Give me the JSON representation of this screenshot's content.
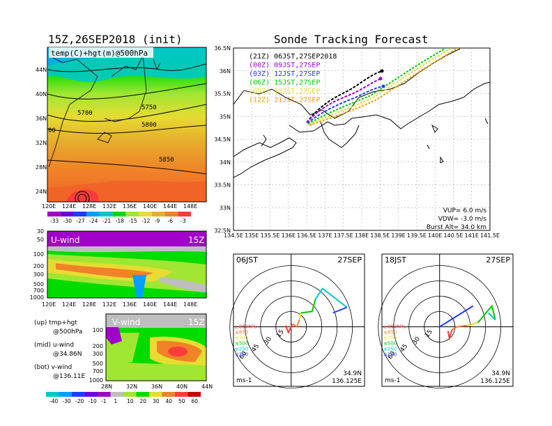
{
  "left": {
    "title": "15Z,26SEP2018 (init)",
    "map_label": "temp(C)+hgt(m)@500hPa",
    "lat_ticks": [
      "44N",
      "40N",
      "36N",
      "32N",
      "28N",
      "24N"
    ],
    "lon_ticks": [
      "120E",
      "124E",
      "128E",
      "132E",
      "136E",
      "140E",
      "144E",
      "148E"
    ],
    "contour_labels": [
      "5700",
      "5750",
      "5800",
      "5850",
      "00"
    ],
    "temp_colorbar": [
      "-33",
      "-30",
      "-27",
      "-24",
      "-21",
      "-18",
      "-15",
      "-12",
      "-9",
      "-6",
      "-3"
    ],
    "uwind": {
      "label": "U-wind",
      "time": "15Z",
      "p_ticks": [
        "30",
        "50",
        "100",
        "200",
        "300",
        "500",
        "700",
        "1000"
      ],
      "lon_ticks": [
        "120E",
        "124E",
        "128E",
        "132E",
        "136E",
        "140E",
        "144E",
        "148E"
      ]
    },
    "vwind": {
      "label": "V-wind",
      "time": "15Z",
      "p_ticks": [
        "100",
        "200",
        "300",
        "500",
        "700",
        "1000"
      ],
      "lat_ticks": [
        "28N",
        "32N",
        "36N",
        "40N",
        "44N"
      ]
    },
    "legend": [
      "(up) tmp+hgt",
      "@500hPa",
      "(mid) u-wind",
      "@34.86N",
      "(bot) v-wind",
      "@136.11E"
    ],
    "wind_colorbar": [
      "-40",
      "-30",
      "-20",
      "-10",
      "-1",
      "1",
      "10",
      "20",
      "30",
      "40",
      "50",
      "60"
    ]
  },
  "right": {
    "title": "Sonde Tracking Forecast",
    "runs": [
      {
        "label": "(21Z)  06JST,27SEP2018",
        "color": "#000000"
      },
      {
        "label": "(00Z)  09JST,27SEP",
        "color": "#a000c8"
      },
      {
        "label": "(03Z)  12JST,27SEP",
        "color": "#1e3cff"
      },
      {
        "label": "(06Z)  15JST,27SEP",
        "color": "#00c800"
      },
      {
        "label": "(09Z)  18JST,27SEP",
        "color": "#e6dc32"
      },
      {
        "label": "(12Z)  21JST,27SEP",
        "color": "#f0a000"
      }
    ],
    "lat_ticks": [
      "36.5N",
      "36N",
      "35.5N",
      "35N",
      "34.5N",
      "34N",
      "33.5N",
      "33N",
      "32.5N"
    ],
    "lon_ticks": [
      "134.5E",
      "135E",
      "135.5E",
      "136E",
      "136.5E",
      "137E",
      "137.5E",
      "138E",
      "138.5E",
      "139E",
      "139.5E",
      "140E",
      "140.5E",
      "141E",
      "141.5E"
    ],
    "params": [
      "VUP=  6.0 m/s",
      "VDW= -3.0 m/s",
      "Burst Alt= 34.0 km"
    ]
  },
  "hodographs": [
    {
      "time": "06JST",
      "date": "27SEP",
      "lat": "34.9N",
      "lon": "136.125E",
      "unit": "ms-1",
      "rings": [
        "15",
        "30",
        "45",
        "60"
      ],
      "levels": [
        "≥850hPa",
        "≤850",
        "≤700",
        "≤500",
        "≤250",
        "≤100"
      ]
    },
    {
      "time": "18JST",
      "date": "27SEP",
      "lat": "34.9N",
      "lon": "136.125E",
      "unit": "ms-1",
      "rings": [
        "15",
        "30",
        "45",
        "60"
      ],
      "levels": [
        "≥850hPa",
        "≤850",
        "≤700",
        "≤500",
        "≤250",
        "≤100"
      ]
    }
  ],
  "colors": {
    "temp_scale": [
      "#a000c8",
      "#6e00dc",
      "#1e3cff",
      "#00a0ff",
      "#00c8c8",
      "#00dc00",
      "#a0e632",
      "#e6dc32",
      "#e6af2d",
      "#f08228",
      "#fa3c3c"
    ],
    "wind_scale": [
      "#00c8c8",
      "#00a0ff",
      "#1e3cff",
      "#6e00dc",
      "#a000c8",
      "#bebebe",
      "#a0e632",
      "#00dc00",
      "#e6dc32",
      "#f08228",
      "#fa3c3c",
      "#c80000"
    ],
    "hodo_levels": [
      "#fa3c3c",
      "#f08228",
      "#e6dc32",
      "#00c800",
      "#00c8c8",
      "#1e3cff"
    ]
  }
}
